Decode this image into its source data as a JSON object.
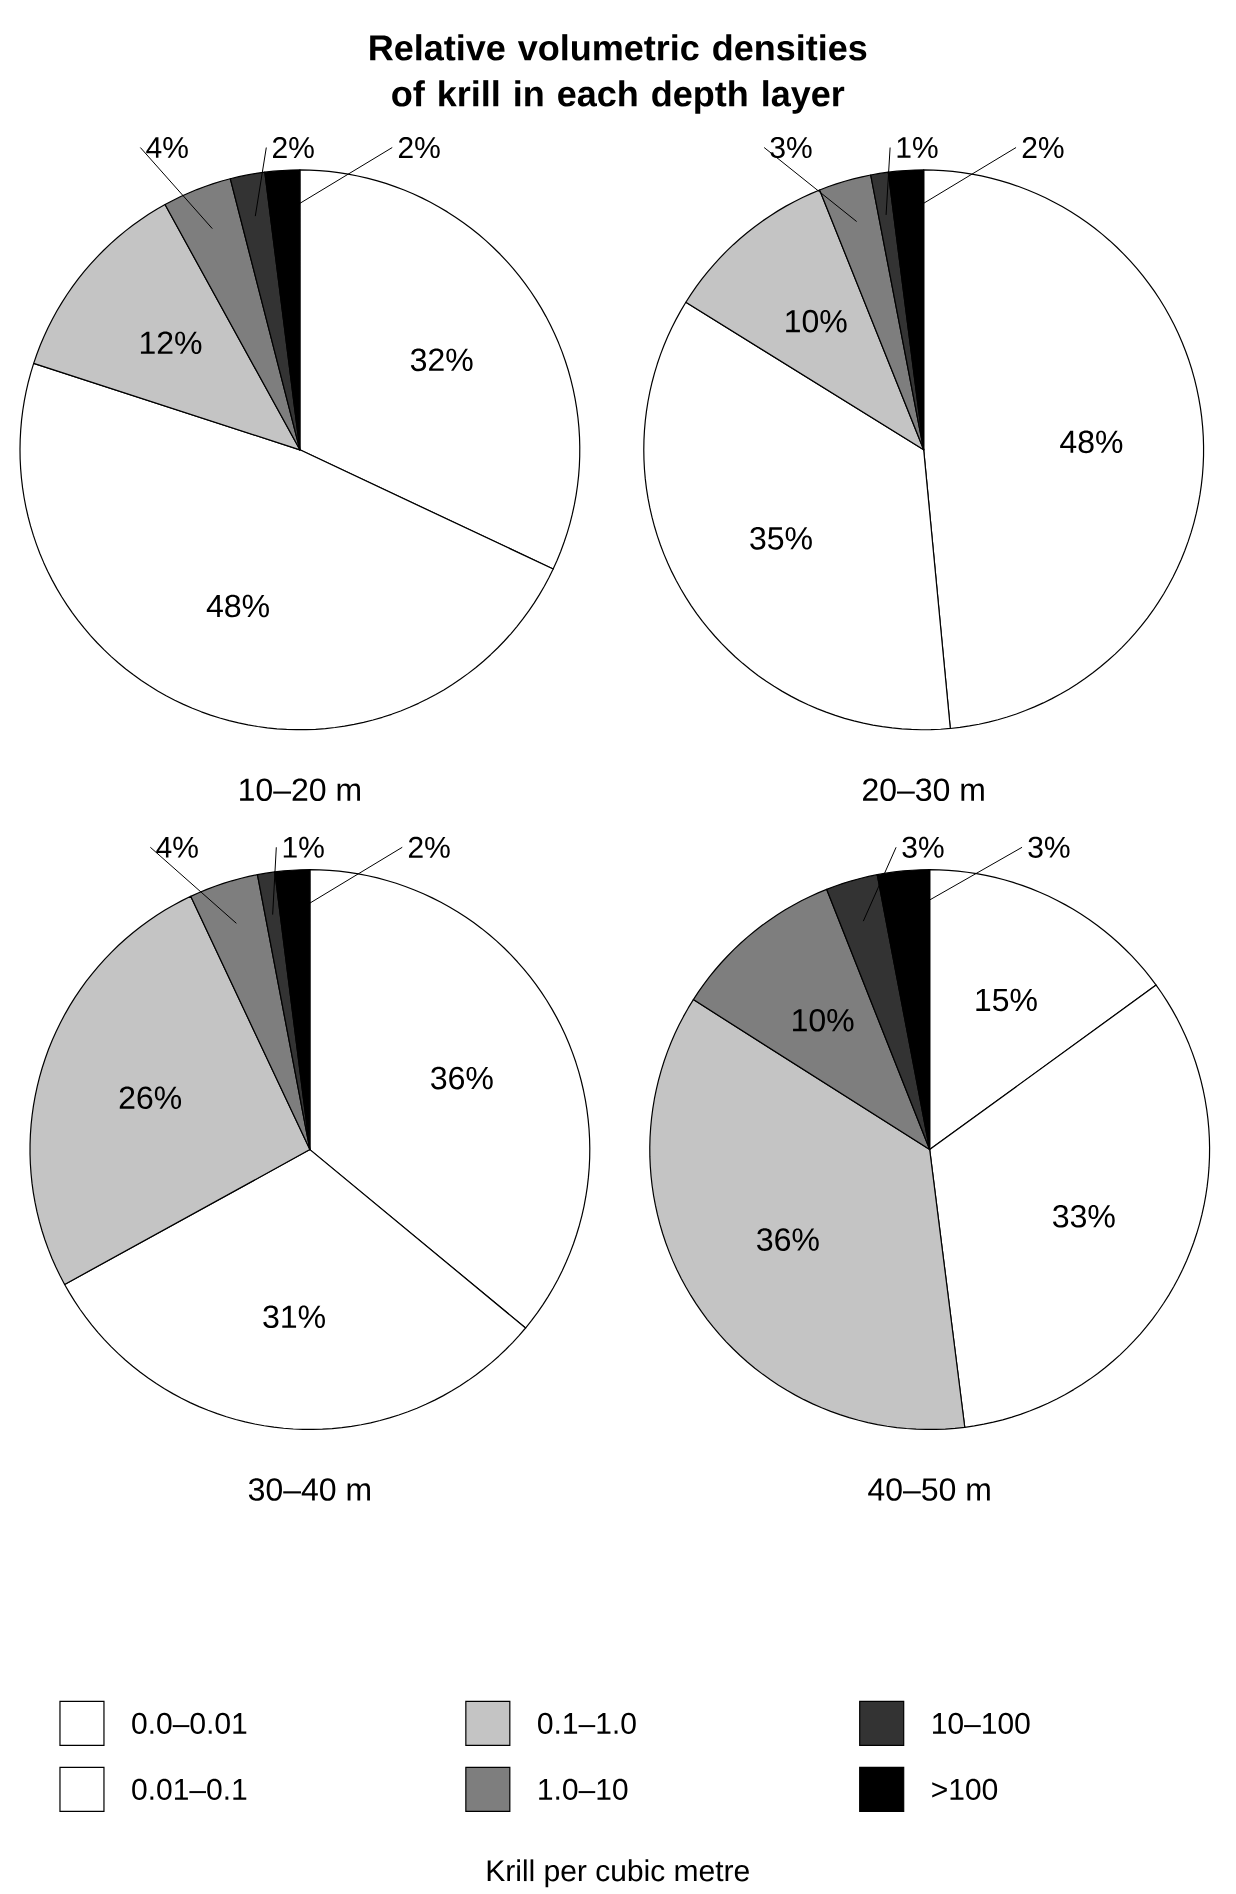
{
  "chart_data": [
    {
      "type": "pie",
      "title": "Relative volumetric densities of krill in each depth layer",
      "xlabel": "10–20 m",
      "legend": "bottom",
      "legend_title": "Krill per cubic metre",
      "categories": [
        "0.0–0.01",
        "0.01–0.1",
        "0.1–1.0",
        "1.0–10",
        "10–100",
        ">100"
      ],
      "values": [
        32,
        48,
        12,
        4,
        2,
        2
      ],
      "value_labels": [
        "32%",
        "48%",
        "12%",
        "4%",
        "2%",
        "2%"
      ],
      "colors": [
        "#ffffff",
        "#ffffff",
        "#c4c4c4",
        "#7e7e7e",
        "#333333",
        "#000000"
      ]
    },
    {
      "type": "pie",
      "xlabel": "20–30 m",
      "values": [
        48,
        35,
        10,
        3,
        1,
        2
      ],
      "value_labels": [
        "48%",
        "35%",
        "10%",
        "3%",
        "1%",
        "2%"
      ],
      "colors": [
        "#ffffff",
        "#ffffff",
        "#c4c4c4",
        "#7e7e7e",
        "#333333",
        "#000000"
      ]
    },
    {
      "type": "pie",
      "xlabel": "30–40 m",
      "values": [
        36,
        31,
        26,
        4,
        1,
        2
      ],
      "value_labels": [
        "36%",
        "31%",
        "26%",
        "4%",
        "1%",
        "2%"
      ],
      "colors": [
        "#ffffff",
        "#ffffff",
        "#c4c4c4",
        "#7e7e7e",
        "#333333",
        "#000000"
      ]
    },
    {
      "type": "pie",
      "xlabel": "40–50 m",
      "values": [
        15,
        33,
        36,
        10,
        3,
        3
      ],
      "value_labels": [
        "15%",
        "33%",
        "36%",
        "10%",
        "3%",
        "3%"
      ],
      "colors": [
        "#ffffff",
        "#ffffff",
        "#c4c4c4",
        "#7e7e7e",
        "#333333",
        "#000000"
      ]
    }
  ]
}
